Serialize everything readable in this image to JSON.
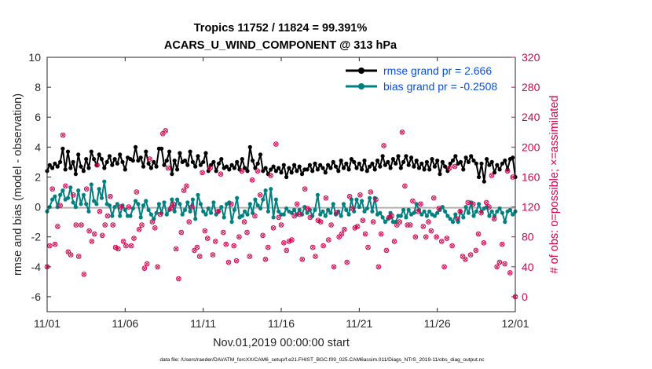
{
  "chart_data": {
    "type": "line",
    "title_line1": "Tropics 11752 / 11824 = 99.391%",
    "title_line2": "ACARS_U_WIND_COMPONENT @ 313 hPa",
    "xlabel": "Nov.01,2019 00:00:00 start",
    "ylabel_left": "rmse and bias (model - observation)",
    "ylabel_right": "# of obs: o=possible; ×=assimilated",
    "footer": "data file: /Users/raeder/DAI/ATM_forcXX/CAM6_setup/f.e21.FHIST_BGC.f09_025.CAM6assim.011/Diags_NTrS_2019-11/obs_diag_output.nc",
    "x_ticks": [
      "11/01",
      "11/06",
      "11/11",
      "11/16",
      "11/21",
      "11/26",
      "12/01"
    ],
    "y_left_ticks": [
      "-6",
      "-4",
      "-2",
      "0",
      "2",
      "4",
      "6",
      "8",
      "10"
    ],
    "y_right_ticks": [
      "0",
      "40",
      "80",
      "120",
      "160",
      "200",
      "240",
      "280",
      "320"
    ],
    "xlim": [
      0,
      30
    ],
    "ylim_left": [
      -7,
      10
    ],
    "ylim_right": [
      -7,
      10
    ],
    "right_tick_left_positions": [
      -6,
      -4,
      -2,
      0,
      2,
      4,
      6,
      8,
      10
    ],
    "colors": {
      "rmse": "#000000",
      "bias": "#008080",
      "obs": "#d6004f",
      "legend_text": "#0a4fd6",
      "zero_line": "#b0b0b0"
    },
    "legend": {
      "rmse_label": "rmse grand pr = 2.666",
      "bias_label": "bias grand pr = -0.2508"
    },
    "series": [
      {
        "name": "rmse",
        "values": [
          2.4,
          2.8,
          2.6,
          2.9,
          2.7,
          3.0,
          3.9,
          2.5,
          3.7,
          2.6,
          3.0,
          2.2,
          3.5,
          2.7,
          2.4,
          3.2,
          2.6,
          3.7,
          3.2,
          2.8,
          3.5,
          3.2,
          2.6,
          3.0,
          3.4,
          2.8,
          3.2,
          2.9,
          3.5,
          3.0,
          2.5,
          3.3,
          3.2,
          3.1,
          4.0,
          3.1,
          3.3,
          2.7,
          3.7,
          2.9,
          2.6,
          3.0,
          2.7,
          3.9,
          3.9,
          2.8,
          3.1,
          3.7,
          2.2,
          3.1,
          2.5,
          3.6,
          3.0,
          3.1,
          2.8,
          3.7,
          3.0,
          2.7,
          3.4,
          2.8,
          3.0,
          3.6,
          2.4,
          2.8,
          3.0,
          2.4,
          2.9,
          3.2,
          2.6,
          2.7,
          2.5,
          2.8,
          2.6,
          3.0,
          2.5,
          3.2,
          2.6,
          2.4,
          4.0,
          3.1,
          2.6,
          2.9,
          3.5,
          2.4,
          2.6,
          2.2,
          2.5,
          2.7,
          2.4,
          2.6,
          2.3,
          2.8,
          2.0,
          2.6,
          2.3,
          2.8,
          2.4,
          2.7,
          2.2,
          2.5,
          2.5,
          2.8,
          2.4,
          2.9,
          2.5,
          2.8,
          2.6,
          2.3,
          2.8,
          2.6,
          3.0,
          2.7,
          2.4,
          3.1,
          2.6,
          2.9,
          2.5,
          3.2,
          3.0,
          2.6,
          2.9,
          2.5,
          3.1,
          2.4,
          2.7,
          2.9,
          2.5,
          3.1,
          2.7,
          3.4,
          2.8,
          3.0,
          2.6,
          3.2,
          2.9,
          3.4,
          2.6,
          3.0,
          3.4,
          2.8,
          3.3,
          2.7,
          3.1,
          2.6,
          2.9,
          2.5,
          3.0,
          2.5,
          3.2,
          2.7,
          3.1,
          2.2,
          3.0,
          2.7,
          2.4,
          2.9,
          3.1,
          3.4,
          2.9,
          3.0,
          2.5,
          3.3,
          3.0,
          3.4,
          3.1,
          2.9,
          2.0,
          2.9,
          1.7,
          3.2,
          2.8,
          3.0,
          2.3,
          2.8,
          2.5,
          2.9,
          3.1,
          2.5,
          3.2,
          3.3,
          2.0
        ]
      },
      {
        "name": "bias",
        "values": [
          -0.3,
          0.0,
          0.5,
          0.7,
          0.0,
          0.8,
          1.1,
          0.5,
          0.6,
          1.3,
          0.3,
          0.0,
          1.1,
          0.2,
          0.8,
          0.2,
          -0.3,
          1.5,
          0.4,
          0.2,
          1.2,
          0.6,
          1.7,
          0.2,
          0.1,
          -0.6,
          0.0,
          0.2,
          -0.6,
          0.1,
          -0.2,
          -0.6,
          -0.6,
          -0.1,
          0.4,
          0.2,
          -0.7,
          0.1,
          0.4,
          -0.2,
          -0.5,
          -0.8,
          -0.4,
          0.2,
          -0.4,
          0.3,
          -0.5,
          -0.2,
          0.5,
          -0.3,
          0.5,
          0.2,
          -0.5,
          -0.2,
          0.3,
          -0.3,
          0.5,
          -0.8,
          0.8,
          0.2,
          -0.3,
          -0.5,
          -0.1,
          -0.4,
          0.3,
          -0.5,
          -0.3,
          0.0,
          -0.7,
          0.2,
          0.3,
          -1.0,
          -0.2,
          0.6,
          -0.7,
          -0.6,
          -0.3,
          -0.5,
          0.2,
          -0.4,
          0.5,
          0.1,
          -0.1,
          0.5,
          1.1,
          -0.3,
          1.2,
          -0.7,
          0.5,
          -0.3,
          -0.5,
          -0.5,
          -0.1,
          -0.3,
          -0.4,
          -0.2,
          -0.5,
          -0.2,
          -0.5,
          0.0,
          -0.4,
          -0.2,
          -0.6,
          -0.2,
          0.8,
          -0.5,
          -0.3,
          -0.6,
          -0.2,
          -0.4,
          0.2,
          -0.5,
          -0.3,
          -0.6,
          0.2,
          -0.2,
          -0.5,
          0.5,
          -0.3,
          0.5,
          0.0,
          0.4,
          -0.3,
          -0.1,
          0.6,
          -0.3,
          0.6,
          -0.5,
          -0.4,
          -0.7,
          -1.0,
          -0.8,
          -0.4,
          -1.0,
          -1.0,
          -0.6,
          -0.6,
          -0.2,
          -0.7,
          -0.2,
          -0.5,
          -0.4,
          0.2,
          -0.2,
          -0.5,
          -0.3,
          -0.6,
          -0.3,
          -0.5,
          -0.6,
          -0.4,
          -0.2,
          0.0,
          -0.3,
          -0.6,
          -0.8,
          -1.0,
          -0.5,
          -1.0,
          -0.3,
          -0.7,
          0.0,
          -0.4,
          0.3,
          -0.6,
          -0.3,
          0.2,
          -0.3,
          -0.1,
          0.0,
          -0.6,
          -0.3,
          -0.6,
          -0.3,
          -0.1,
          -0.4,
          -1.0,
          -0.3,
          -0.2,
          -0.5,
          -0.3
        ]
      },
      {
        "name": "obs",
        "values": [
          -4.0,
          -2.6,
          1.2,
          -2.5,
          -1.3,
          0.1,
          4.8,
          1.4,
          -3.0,
          -3.2,
          0.8,
          -1.2,
          -3.3,
          -1.2,
          -4.5,
          1.2,
          -1.6,
          -2.3,
          -1.8,
          2.8,
          -0.3,
          -1.9,
          -1.2,
          -0.6,
          0.7,
          -1.2,
          -2.7,
          -2.8,
          0.0,
          -2.3,
          -2.6,
          0.0,
          -2.6,
          -2.1,
          1.0,
          -1.5,
          -1.2,
          -4.1,
          -3.8,
          3.2,
          -1.0,
          -1.4,
          -4.0,
          -0.5,
          4.9,
          5.1,
          2.6,
          -0.1,
          0.2,
          -2.8,
          -4.8,
          -1.7,
          1.1,
          1.4,
          -1.0,
          0.0,
          -2.9,
          -2.7,
          -3.3,
          2.3,
          -1.6,
          -2.1,
          2.6,
          -3.2,
          -2.3,
          -0.3,
          2.2,
          -1.7,
          -2.5,
          -3.7,
          0.2,
          -2.6,
          -3.6,
          -2.0,
          2.4,
          -1.0,
          -1.7,
          -3.3,
          1.8,
          -0.6,
          2.4,
          0.8,
          -1.9,
          -3.5,
          -2.7,
          2.1,
          -1.4,
          4.2,
          -0.7,
          -1.2,
          -2.4,
          -2.9,
          -2.3,
          -2.2,
          -0.6,
          0.2,
          -0.5,
          -3.5,
          1.2,
          -0.1,
          -0.7,
          -2.7,
          -3.3,
          -0.9,
          -1.0,
          -2.6,
          0.6,
          -2.2,
          -1.2,
          -4.0,
          -0.4,
          -2.0,
          -1.8,
          -1.5,
          -3.7,
          0.7,
          -0.1,
          -1.4,
          -1.3,
          0.8,
          -0.9,
          -1.8,
          -2.7,
          1.0,
          -1.0,
          0.5,
          -4.0,
          -1.8,
          4.1,
          -2.9,
          -0.7,
          -0.6,
          -2.3,
          -1.2,
          -1.0,
          5.0,
          1.4,
          -1.2,
          -1.2,
          0.4,
          -2.0,
          -0.3,
          0.2,
          -1.3,
          -2.0,
          -1.0,
          -1.6,
          0.6,
          -2.0,
          -0.1,
          -2.3,
          -4.0,
          -2.1,
          2.6,
          -2.6,
          2.7,
          -0.8,
          -0.3,
          -3.3,
          -3.5,
          0.3,
          -3.2,
          0.2,
          -2.9,
          -1.8,
          -0.4,
          -2.4,
          0.3,
          0.0,
          2.1,
          -0.8,
          -4.0,
          -3.7,
          -2.5,
          -3.8,
          2.4,
          -4.4,
          2.0,
          -6.0
        ]
      }
    ]
  }
}
